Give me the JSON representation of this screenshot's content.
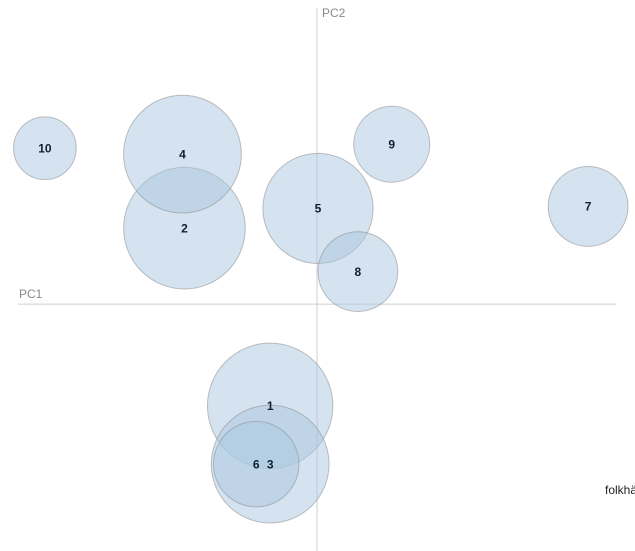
{
  "chart_data": {
    "type": "scatter",
    "title": "",
    "xlabel": "PC1",
    "ylabel": "PC2",
    "xlim": [
      -3.0,
      3.0
    ],
    "ylim": [
      -2.5,
      3.0
    ],
    "grid": false,
    "legend": "none",
    "bubble_color": "#a9c8e0",
    "points": [
      {
        "label": "1",
        "x": -0.47,
        "y": -1.03,
        "size": 66
      },
      {
        "label": "2",
        "x": -1.33,
        "y": 0.77,
        "size": 64
      },
      {
        "label": "3",
        "x": -0.47,
        "y": -1.62,
        "size": 62
      },
      {
        "label": "4",
        "x": -1.35,
        "y": 1.52,
        "size": 62
      },
      {
        "label": "5",
        "x": 0.01,
        "y": 0.97,
        "size": 58
      },
      {
        "label": "6",
        "x": -0.61,
        "y": -1.62,
        "size": 45
      },
      {
        "label": "7",
        "x": 2.72,
        "y": 0.99,
        "size": 42
      },
      {
        "label": "8",
        "x": 0.41,
        "y": 0.33,
        "size": 42
      },
      {
        "label": "9",
        "x": 0.75,
        "y": 1.62,
        "size": 40
      },
      {
        "label": "10",
        "x": -2.73,
        "y": 1.58,
        "size": 33
      }
    ]
  },
  "side_note": "folkhä"
}
